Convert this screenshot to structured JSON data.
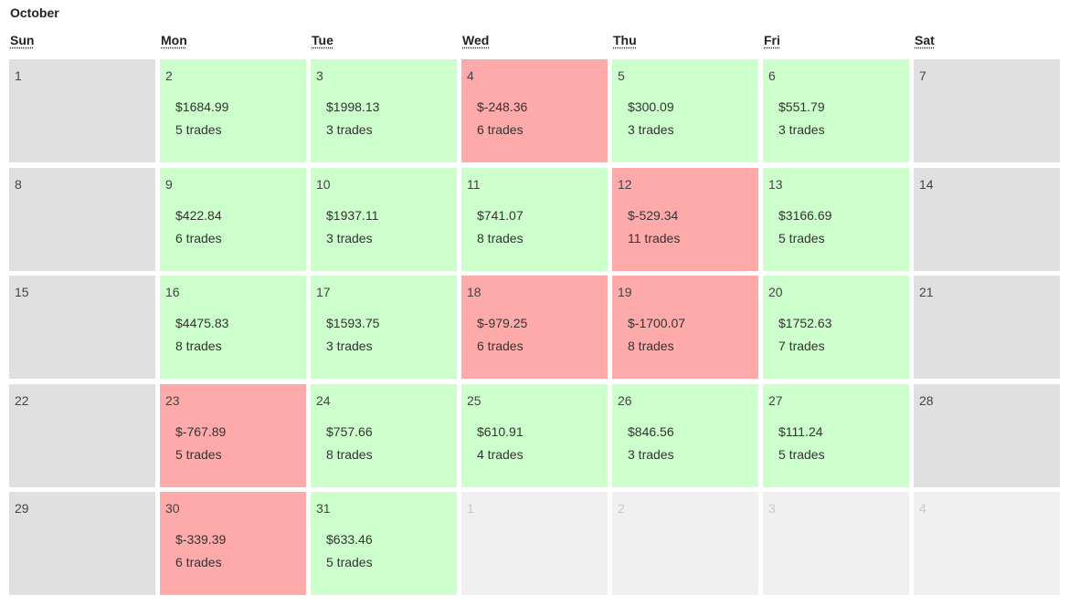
{
  "calendar": {
    "month": "October",
    "weekdays": [
      "Sun",
      "Mon",
      "Tue",
      "Wed",
      "Thu",
      "Fri",
      "Sat"
    ],
    "colors": {
      "profit": "#ccffcc",
      "loss": "#ffaaaa",
      "weekend": "#e0e0e0",
      "outside_month": "#f0f0f0"
    },
    "weeks": [
      [
        {
          "day": "1",
          "type": "weekend"
        },
        {
          "day": "2",
          "type": "win",
          "pnl": "$1684.99",
          "trades": "5 trades"
        },
        {
          "day": "3",
          "type": "win",
          "pnl": "$1998.13",
          "trades": "3 trades"
        },
        {
          "day": "4",
          "type": "loss",
          "pnl": "$-248.36",
          "trades": "6 trades"
        },
        {
          "day": "5",
          "type": "win",
          "pnl": "$300.09",
          "trades": "3 trades"
        },
        {
          "day": "6",
          "type": "win",
          "pnl": "$551.79",
          "trades": "3 trades"
        },
        {
          "day": "7",
          "type": "weekend"
        }
      ],
      [
        {
          "day": "8",
          "type": "weekend"
        },
        {
          "day": "9",
          "type": "win",
          "pnl": "$422.84",
          "trades": "6 trades"
        },
        {
          "day": "10",
          "type": "win",
          "pnl": "$1937.11",
          "trades": "3 trades"
        },
        {
          "day": "11",
          "type": "win",
          "pnl": "$741.07",
          "trades": "8 trades"
        },
        {
          "day": "12",
          "type": "loss",
          "pnl": "$-529.34",
          "trades": "11 trades"
        },
        {
          "day": "13",
          "type": "win",
          "pnl": "$3166.69",
          "trades": "5 trades"
        },
        {
          "day": "14",
          "type": "weekend"
        }
      ],
      [
        {
          "day": "15",
          "type": "weekend"
        },
        {
          "day": "16",
          "type": "win",
          "pnl": "$4475.83",
          "trades": "8 trades"
        },
        {
          "day": "17",
          "type": "win",
          "pnl": "$1593.75",
          "trades": "3 trades"
        },
        {
          "day": "18",
          "type": "loss",
          "pnl": "$-979.25",
          "trades": "6 trades"
        },
        {
          "day": "19",
          "type": "loss",
          "pnl": "$-1700.07",
          "trades": "8 trades"
        },
        {
          "day": "20",
          "type": "win",
          "pnl": "$1752.63",
          "trades": "7 trades"
        },
        {
          "day": "21",
          "type": "weekend"
        }
      ],
      [
        {
          "day": "22",
          "type": "weekend"
        },
        {
          "day": "23",
          "type": "loss",
          "pnl": "$-767.89",
          "trades": "5 trades"
        },
        {
          "day": "24",
          "type": "win",
          "pnl": "$757.66",
          "trades": "8 trades"
        },
        {
          "day": "25",
          "type": "win",
          "pnl": "$610.91",
          "trades": "4 trades"
        },
        {
          "day": "26",
          "type": "win",
          "pnl": "$846.56",
          "trades": "3 trades"
        },
        {
          "day": "27",
          "type": "win",
          "pnl": "$111.24",
          "trades": "5 trades"
        },
        {
          "day": "28",
          "type": "weekend"
        }
      ],
      [
        {
          "day": "29",
          "type": "weekend"
        },
        {
          "day": "30",
          "type": "loss",
          "pnl": "$-339.39",
          "trades": "6 trades"
        },
        {
          "day": "31",
          "type": "win",
          "pnl": "$633.46",
          "trades": "5 trades"
        },
        {
          "day": "1",
          "type": "other"
        },
        {
          "day": "2",
          "type": "other"
        },
        {
          "day": "3",
          "type": "other"
        },
        {
          "day": "4",
          "type": "other"
        }
      ]
    ]
  }
}
